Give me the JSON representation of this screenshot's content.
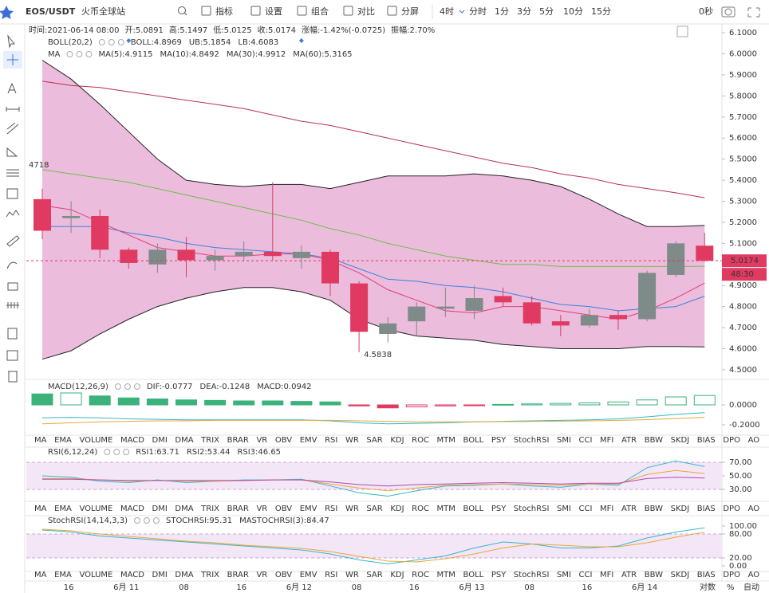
{
  "toolbar": {
    "symbol": "EOS/USDT",
    "exchange": "火币全球站",
    "menu": [
      "指标",
      "设置",
      "组合",
      "对比",
      "分屏"
    ],
    "intervals": [
      "4时",
      "分时",
      "1分",
      "3分",
      "5分",
      "10分",
      "15分"
    ],
    "active_interval": 0,
    "countdown": "0秒"
  },
  "info": [
    {
      "label": "时间:",
      "value": "2021-06-14 08:00"
    },
    {
      "label": "开:",
      "value": "5.0891"
    },
    {
      "label": "高:",
      "value": "5.1497"
    },
    {
      "label": "低:",
      "value": "5.0125"
    },
    {
      "label": "收:",
      "value": "5.0174"
    },
    {
      "label": "涨幅:",
      "value": "-1.42%(-0.0725)"
    },
    {
      "label": "振幅:",
      "value": "2.70%"
    }
  ],
  "indicator_tabs": [
    "MA",
    "EMA",
    "VOLUME",
    "MACD",
    "DMI",
    "DMA",
    "TRIX",
    "BRAR",
    "VR",
    "OBV",
    "EMV",
    "RSI",
    "WR",
    "SAR",
    "KDJ",
    "ROC",
    "MTM",
    "BOLL",
    "PSY",
    "StochRSI",
    "SMI",
    "CCI",
    "MFI",
    "ATR",
    "BBW",
    "SKDJ",
    "BIAS",
    "DPO",
    "AO"
  ],
  "tab_rows": [
    {
      "active": 3,
      "disabled": [
        11,
        19
      ]
    },
    {
      "active": null,
      "disabled": [
        3,
        19
      ]
    },
    {
      "active": 19,
      "disabled": [
        3,
        11
      ]
    }
  ],
  "footer_controls": [
    "对数",
    "%",
    "自动"
  ],
  "chart_data": [
    {
      "type": "candlestick",
      "categories": [
        null,
        "16",
        null,
        "6月 11",
        null,
        "08",
        null,
        "16",
        null,
        "6月 12",
        null,
        "08",
        null,
        "16",
        null,
        "6月 13",
        null,
        "08",
        null,
        "16",
        null,
        "6月 14",
        null,
        null
      ],
      "open": [
        5.31,
        5.22,
        5.23,
        5.07,
        5.0,
        5.07,
        5.02,
        5.04,
        5.06,
        5.03,
        5.06,
        4.91,
        4.67,
        4.73,
        4.79,
        4.78,
        4.85,
        4.82,
        4.73,
        4.71,
        4.76,
        4.74,
        4.95,
        5.0891
      ],
      "high": [
        5.36,
        5.3,
        5.26,
        5.08,
        5.1,
        5.13,
        5.07,
        5.11,
        5.39,
        5.09,
        5.07,
        4.92,
        4.75,
        4.82,
        4.89,
        4.9,
        4.89,
        4.85,
        4.76,
        4.79,
        4.78,
        4.97,
        5.11,
        5.1497
      ],
      "low": [
        5.12,
        5.15,
        5.03,
        4.98,
        4.96,
        4.94,
        4.97,
        5.02,
        5.02,
        4.98,
        4.85,
        4.5838,
        4.63,
        4.66,
        4.75,
        4.74,
        4.8,
        4.71,
        4.66,
        4.7,
        4.69,
        4.73,
        4.94,
        5.0125
      ],
      "close": [
        5.16,
        5.23,
        5.07,
        5.007,
        5.07,
        5.02,
        5.04,
        5.06,
        5.04,
        5.06,
        4.91,
        4.68,
        4.72,
        4.8,
        4.8,
        4.84,
        4.82,
        4.72,
        4.71,
        4.76,
        4.74,
        4.96,
        5.1,
        5.0174
      ],
      "up_color": "#7f8b88",
      "down_color": "#e03a62",
      "band_color": "#ebbcdb",
      "ylim": [
        4.458,
        6.142
      ],
      "yticks": [
        {
          "value": 6.1,
          "label": "6.1000"
        },
        {
          "value": 6.0,
          "label": "6.0000"
        },
        {
          "value": 5.9,
          "label": "5.9000"
        },
        {
          "value": 5.8,
          "label": "5.8000"
        },
        {
          "value": 5.7,
          "label": "5.7000"
        },
        {
          "value": 5.6,
          "label": "5.6000"
        },
        {
          "value": 5.5,
          "label": "5.5000"
        },
        {
          "value": 5.4,
          "label": "5.4000"
        },
        {
          "value": 5.3,
          "label": "5.3000"
        },
        {
          "value": 5.2,
          "label": "5.2000"
        },
        {
          "value": 5.1,
          "label": "5.1000"
        },
        {
          "value": 5.0,
          "label": "5.0000"
        },
        {
          "value": 4.9,
          "label": "4.9000"
        },
        {
          "value": 4.8,
          "label": "4.8000"
        },
        {
          "value": 4.7,
          "label": "4.7000"
        },
        {
          "value": 4.6,
          "label": "4.6000"
        },
        {
          "value": 4.5,
          "label": "4.5000"
        }
      ],
      "band": {
        "upper": [
          5.97,
          5.88,
          5.76,
          5.63,
          5.5,
          5.4,
          5.38,
          5.37,
          5.38,
          5.38,
          5.36,
          5.39,
          5.42,
          5.42,
          5.42,
          5.43,
          5.42,
          5.4,
          5.37,
          5.31,
          5.24,
          5.18,
          5.18,
          5.1854
        ],
        "lower": [
          4.55,
          4.59,
          4.67,
          4.74,
          4.8,
          4.84,
          4.87,
          4.89,
          4.89,
          4.87,
          4.83,
          4.74,
          4.69,
          4.66,
          4.65,
          4.64,
          4.62,
          4.61,
          4.6,
          4.6,
          4.6,
          4.61,
          4.61,
          4.6083
        ]
      },
      "series": [
        {
          "name": "MA(60)",
          "color": "#b8324e",
          "values": [
            5.87,
            5.85,
            5.84,
            5.82,
            5.8,
            5.78,
            5.76,
            5.74,
            5.71,
            5.68,
            5.66,
            5.63,
            5.6,
            5.57,
            5.54,
            5.51,
            5.48,
            5.46,
            5.43,
            5.41,
            5.38,
            5.36,
            5.34,
            5.3165
          ]
        },
        {
          "name": "MA(30)",
          "color": "#6cbf4a",
          "values": [
            5.45,
            5.43,
            5.41,
            5.39,
            5.36,
            5.33,
            5.3,
            5.27,
            5.24,
            5.21,
            5.17,
            5.14,
            5.1,
            5.07,
            5.04,
            5.02,
            5.0,
            5.0,
            4.99,
            4.99,
            4.99,
            4.99,
            4.99,
            4.9912
          ]
        },
        {
          "name": "MA(10)",
          "color": "#3b82e0",
          "values": [
            5.18,
            5.18,
            5.18,
            5.15,
            5.13,
            5.1,
            5.08,
            5.07,
            5.06,
            5.05,
            5.03,
            4.98,
            4.93,
            4.92,
            4.9,
            4.89,
            4.87,
            4.84,
            4.81,
            4.8,
            4.78,
            4.79,
            4.8,
            4.8492
          ]
        },
        {
          "name": "MA(5)",
          "color": "#e0407a",
          "values": [
            5.28,
            5.26,
            5.2,
            5.14,
            5.08,
            5.06,
            5.04,
            5.04,
            5.05,
            5.05,
            5.02,
            4.96,
            4.88,
            4.83,
            4.78,
            4.77,
            4.8,
            4.8,
            4.78,
            4.76,
            4.74,
            4.78,
            4.84,
            4.9115
          ]
        }
      ],
      "legend": [
        [
          {
            "text": "BOLL(20,2)",
            "color": "#333"
          },
          {
            "text": "BOLL:4.8969",
            "color": "#333"
          },
          {
            "text": "UB:5.1854",
            "color": "#333"
          },
          {
            "text": "LB:4.6083",
            "color": "#333"
          }
        ],
        [
          {
            "text": "MA",
            "color": "#333"
          },
          {
            "text": "MA(5):4.9115",
            "color": "#e0407a"
          },
          {
            "text": "MA(10):4.8492",
            "color": "#3b82e0"
          },
          {
            "text": "MA(30):4.9912",
            "color": "#4fae2e"
          },
          {
            "text": "MA(60):5.3165",
            "color": "#b8324e"
          }
        ]
      ],
      "annotations": {
        "left_value": "4718",
        "low_label": "4.5838",
        "last_price": "5.0174",
        "countdown": "48:30"
      }
    },
    {
      "type": "bar",
      "ylim": [
        -0.296,
        0.24
      ],
      "yticks": [
        {
          "value": 0,
          "label": "0.0000"
        },
        {
          "value": -0.2,
          "label": "-0.2000"
        }
      ],
      "values": [
        0.11,
        0.12,
        0.09,
        0.07,
        0.06,
        0.05,
        0.045,
        0.04,
        0.04,
        0.035,
        0.03,
        -0.01,
        -0.03,
        -0.02,
        -0.01,
        -0.005,
        0.005,
        0.01,
        0.015,
        0.02,
        0.03,
        0.05,
        0.08,
        0.0942
      ],
      "up_color": "#3bb27b",
      "down_color": "#e03a62",
      "series": [
        {
          "name": "DIF",
          "color": "#35b8c9",
          "values": [
            -0.13,
            -0.125,
            -0.13,
            -0.14,
            -0.145,
            -0.15,
            -0.15,
            -0.15,
            -0.15,
            -0.15,
            -0.16,
            -0.18,
            -0.19,
            -0.185,
            -0.18,
            -0.17,
            -0.165,
            -0.16,
            -0.155,
            -0.15,
            -0.14,
            -0.12,
            -0.095,
            -0.0777
          ]
        },
        {
          "name": "DEA",
          "color": "#e8a838",
          "values": [
            -0.19,
            -0.18,
            -0.17,
            -0.165,
            -0.16,
            -0.16,
            -0.155,
            -0.155,
            -0.155,
            -0.155,
            -0.155,
            -0.16,
            -0.165,
            -0.17,
            -0.17,
            -0.17,
            -0.168,
            -0.166,
            -0.163,
            -0.16,
            -0.155,
            -0.148,
            -0.137,
            -0.1248
          ]
        }
      ],
      "legend": [
        [
          {
            "text": "MACD(12,26,9)",
            "color": "#333"
          },
          {
            "text": "DIF:-0.0777",
            "color": "#35b8c9"
          },
          {
            "text": "DEA:-0.1248",
            "color": "#e8a838"
          },
          {
            "text": "MACD:0.0942",
            "color": "#b04ab0"
          }
        ]
      ]
    },
    {
      "type": "line",
      "ylim": [
        13.5,
        91.2
      ],
      "yticks": [
        {
          "value": 70,
          "label": "70.00"
        },
        {
          "value": 50,
          "label": "50.00"
        },
        {
          "value": 30,
          "label": "30.00"
        }
      ],
      "band": [
        30,
        70
      ],
      "series": [
        {
          "name": "RSI1",
          "color": "#35b8c9",
          "values": [
            50,
            48,
            42,
            40,
            44,
            40,
            42,
            44,
            44,
            45,
            35,
            25,
            20,
            28,
            35,
            36,
            38,
            35,
            33,
            38,
            36,
            62,
            72,
            63.71
          ]
        },
        {
          "name": "RSI2",
          "color": "#e8a838",
          "values": [
            46,
            46,
            44,
            42,
            43,
            42,
            42,
            43,
            44,
            44,
            38,
            32,
            28,
            32,
            36,
            37,
            38,
            37,
            36,
            38,
            38,
            52,
            58,
            53.44
          ]
        },
        {
          "name": "RSI3",
          "color": "#b04ab0",
          "values": [
            45,
            45,
            44,
            43,
            43,
            43,
            43,
            43,
            44,
            44,
            41,
            37,
            35,
            37,
            38,
            39,
            40,
            39,
            38,
            39,
            39,
            46,
            48,
            46.65
          ]
        }
      ],
      "legend": [
        [
          {
            "text": "RSI(6,12,24)",
            "color": "#333"
          },
          {
            "text": "RSI1:63.71",
            "color": "#35b8c9"
          },
          {
            "text": "RSI2:53.44",
            "color": "#e8a838"
          },
          {
            "text": "RSI3:46.65",
            "color": "#b04ab0"
          }
        ]
      ]
    },
    {
      "type": "line",
      "ylim": [
        -12,
        120
      ],
      "yticks": [
        {
          "value": 100,
          "label": "100.00"
        },
        {
          "value": 80,
          "label": "80.00"
        },
        {
          "value": 20,
          "label": "20.00"
        },
        {
          "value": 0,
          "label": "0.00"
        }
      ],
      "band": [
        20,
        80
      ],
      "series": [
        {
          "name": "STOCHRSI",
          "color": "#35b8c9",
          "values": [
            90,
            85,
            75,
            70,
            65,
            60,
            55,
            50,
            45,
            40,
            30,
            15,
            5,
            15,
            25,
            45,
            60,
            55,
            45,
            45,
            50,
            70,
            85,
            95.31
          ]
        },
        {
          "name": "MASTOCHRSI(3)",
          "color": "#e8a838",
          "values": [
            92,
            88,
            80,
            74,
            68,
            62,
            58,
            52,
            48,
            44,
            36,
            24,
            12,
            10,
            18,
            30,
            45,
            55,
            52,
            48,
            48,
            58,
            72,
            84.47
          ]
        }
      ],
      "legend": [
        [
          {
            "text": "StochRSI(14,14,3,3)",
            "color": "#333"
          },
          {
            "text": "STOCHRSI:95.31",
            "color": "#35b8c9"
          },
          {
            "text": "MASTOCHRSI(3):84.47",
            "color": "#e8a838"
          }
        ]
      ]
    }
  ]
}
